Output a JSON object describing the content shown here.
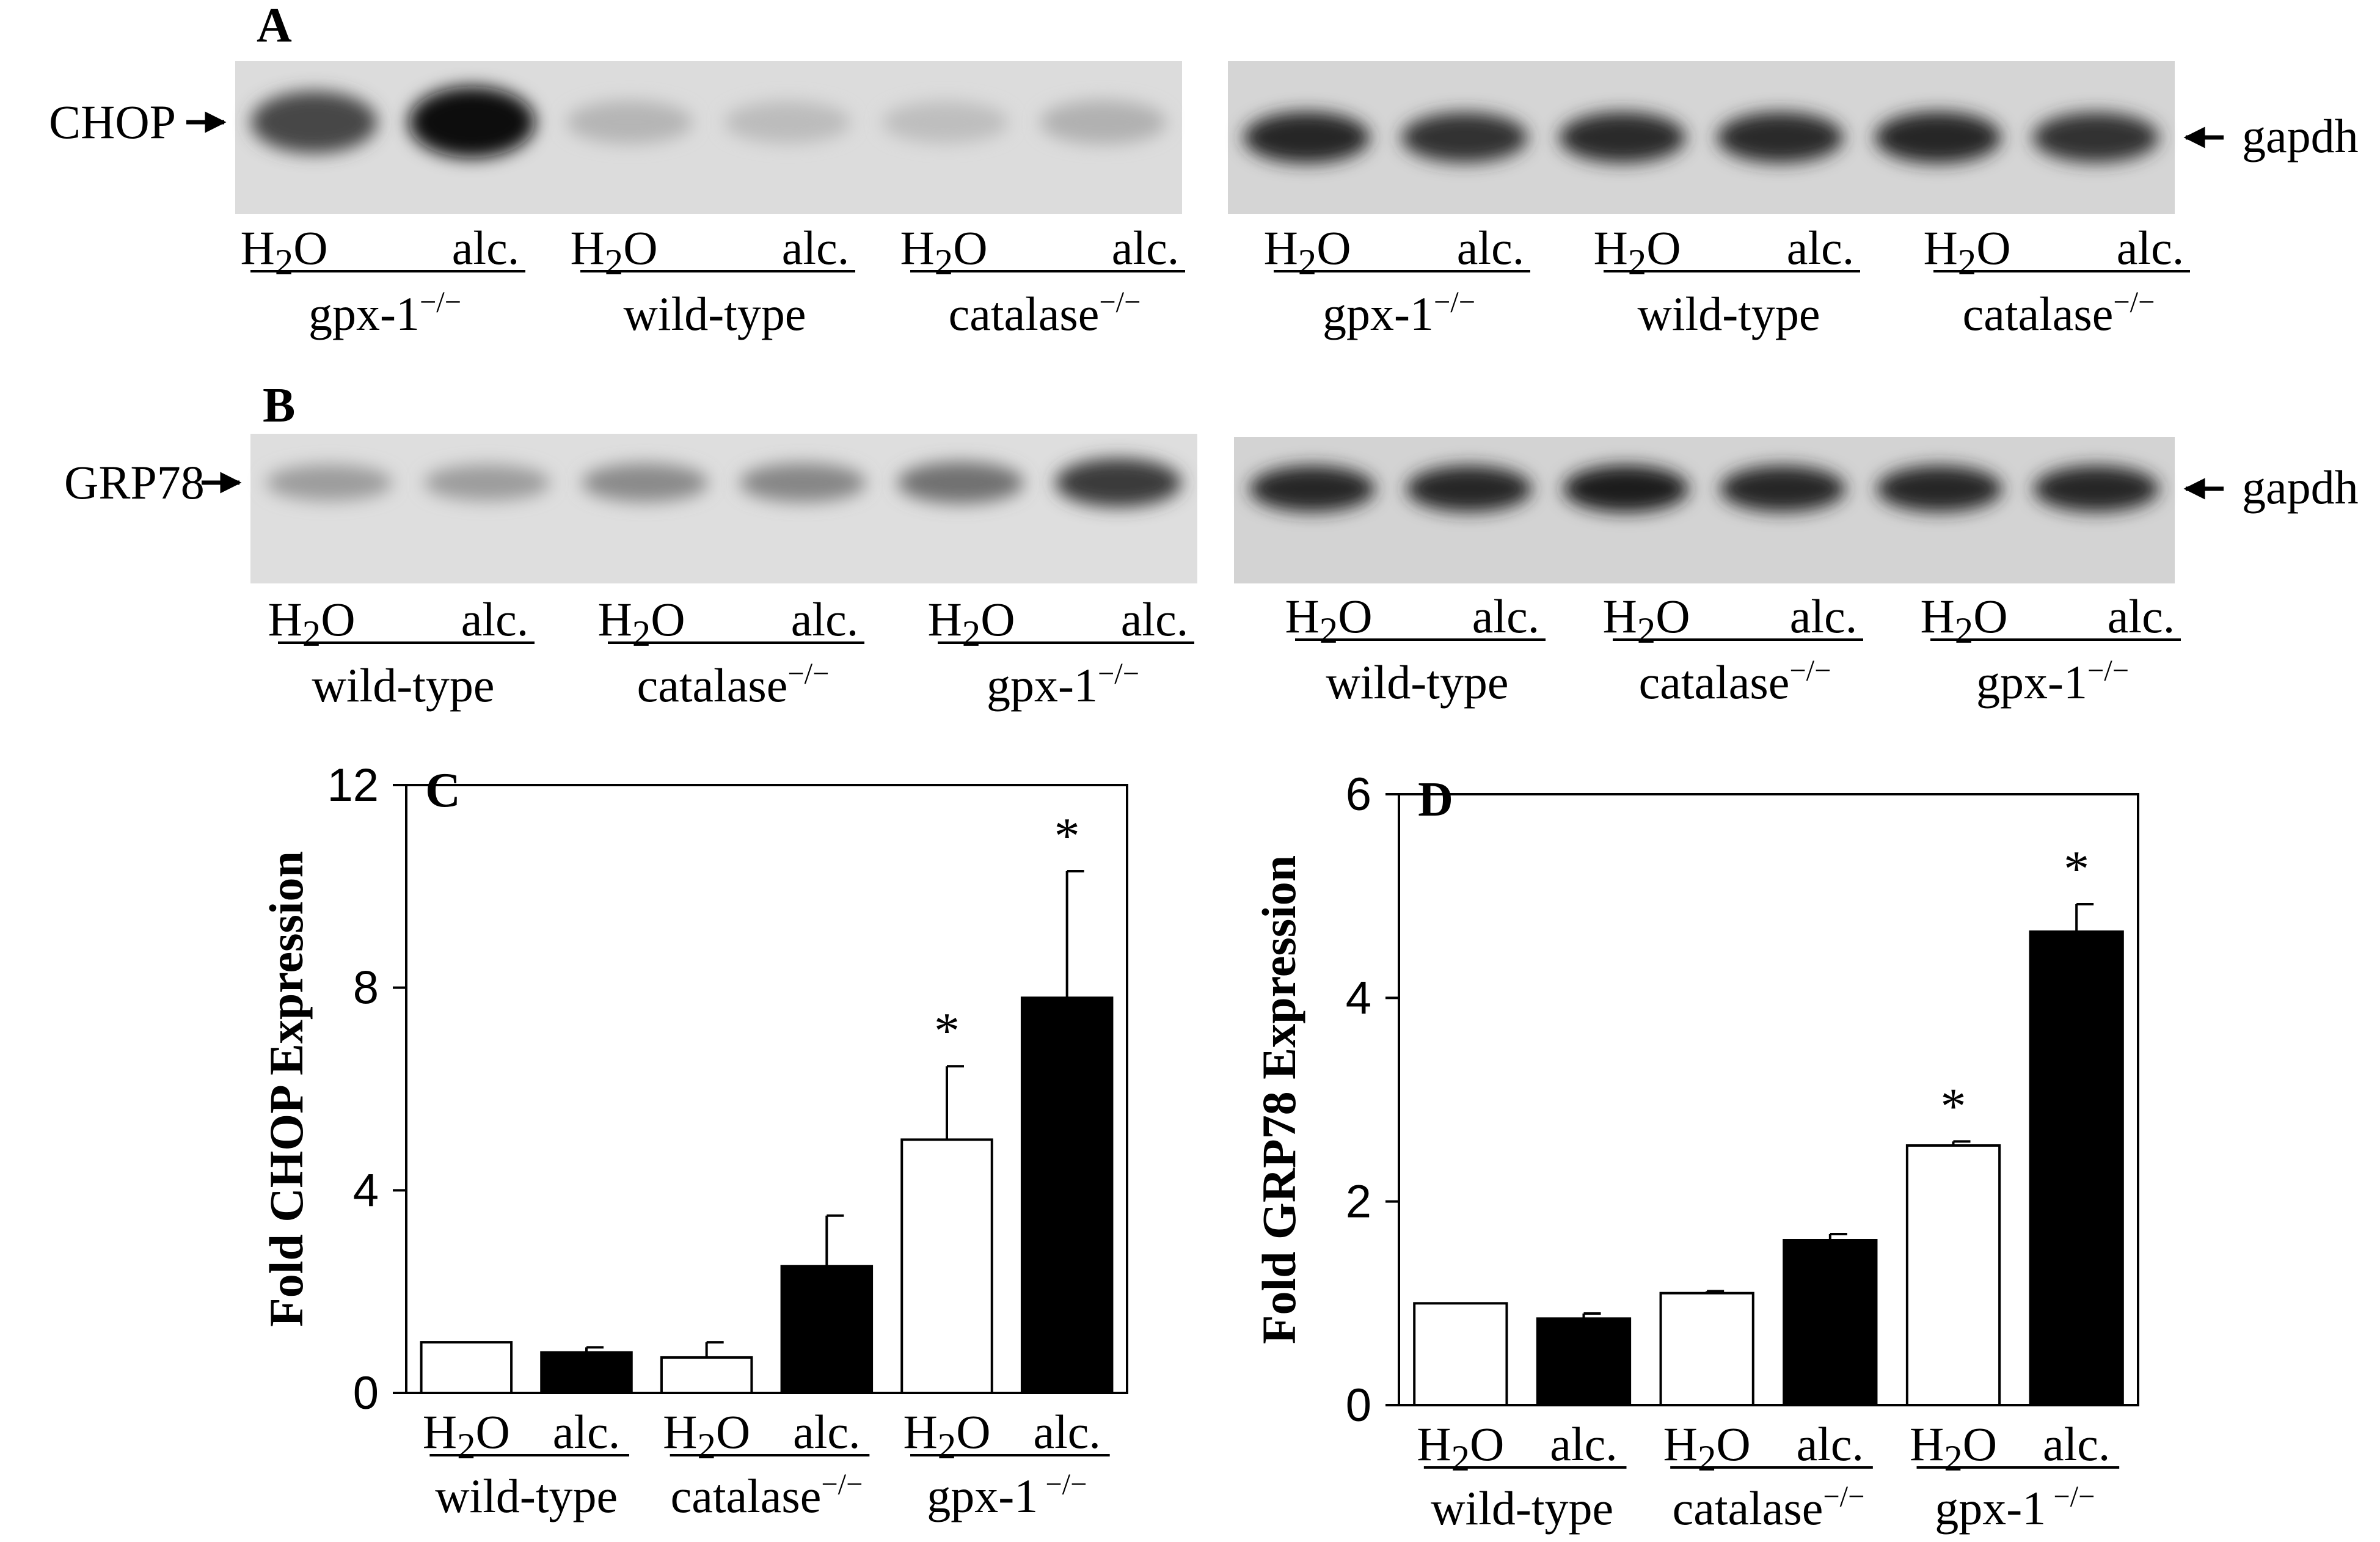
{
  "panels": {
    "A": {
      "letter": "A",
      "left": {
        "marker": "CHOP",
        "lanes": [
          "H2O",
          "alc.",
          "H2O",
          "alc.",
          "H2O",
          "alc."
        ],
        "groups": [
          {
            "name": "gpx-1",
            "sup": "−/−"
          },
          {
            "name": "wild-type",
            "sup": ""
          },
          {
            "name": "catalase",
            "sup": "−/−"
          }
        ],
        "band_intensity": [
          0.7,
          0.95,
          0.18,
          0.15,
          0.14,
          0.2
        ]
      },
      "right": {
        "marker": "gapdh",
        "lanes": [
          "H2O",
          "alc.",
          "H2O",
          "alc.",
          "H2O",
          "alc."
        ],
        "groups": [
          {
            "name": "gpx-1",
            "sup": "−/−"
          },
          {
            "name": "wild-type",
            "sup": ""
          },
          {
            "name": "catalase",
            "sup": "−/−"
          }
        ],
        "band_intensity": [
          0.85,
          0.8,
          0.82,
          0.82,
          0.85,
          0.8
        ]
      }
    },
    "B": {
      "letter": "B",
      "left": {
        "marker": "GRP78",
        "lanes": [
          "H2O",
          "alc.",
          "H2O",
          "alc.",
          "H2O",
          "alc."
        ],
        "groups": [
          {
            "name": "wild-type",
            "sup": ""
          },
          {
            "name": "catalase",
            "sup": "−/−"
          },
          {
            "name": "gpx-1",
            "sup": "−/−"
          }
        ],
        "band_intensity": [
          0.3,
          0.3,
          0.38,
          0.4,
          0.5,
          0.75
        ]
      },
      "right": {
        "marker": "gapdh",
        "lanes": [
          "H2O",
          "alc.",
          "H2O",
          "alc.",
          "H2O",
          "alc."
        ],
        "groups": [
          {
            "name": "wild-type",
            "sup": ""
          },
          {
            "name": "catalase",
            "sup": "−/−"
          },
          {
            "name": "gpx-1",
            "sup": "−/−"
          }
        ],
        "band_intensity": [
          0.85,
          0.85,
          0.88,
          0.85,
          0.85,
          0.85
        ]
      }
    }
  },
  "chart_data": [
    {
      "panel": "C",
      "type": "bar",
      "ylabel": "Fold CHOP Expression",
      "ylim": [
        0,
        12
      ],
      "yticks": [
        "0",
        "4",
        "8",
        "12"
      ],
      "categories": [
        "H2O",
        "alc.",
        "H2O",
        "alc.",
        "H2O",
        "alc."
      ],
      "groups": [
        {
          "name": "wild-type",
          "sup": ""
        },
        {
          "name": "catalase",
          "sup": "−/−"
        },
        {
          "name": "gpx-1",
          "sup": " −/−"
        }
      ],
      "values": [
        1.0,
        0.8,
        0.7,
        2.5,
        5.0,
        7.8
      ],
      "errors": [
        0.0,
        0.1,
        0.3,
        1.0,
        1.45,
        2.5
      ],
      "fills": [
        "#ffffff",
        "#000000",
        "#ffffff",
        "#000000",
        "#ffffff",
        "#000000"
      ],
      "significance": [
        "",
        "",
        "",
        "",
        "*",
        "*"
      ],
      "grid": false
    },
    {
      "panel": "D",
      "type": "bar",
      "ylabel": "Fold GRP78 Expression",
      "ylim": [
        0,
        6
      ],
      "yticks": [
        "0",
        "2",
        "4",
        "6"
      ],
      "categories": [
        "H2O",
        "alc.",
        "H2O",
        "alc.",
        "H2O",
        "alc."
      ],
      "groups": [
        {
          "name": "wild-type",
          "sup": ""
        },
        {
          "name": "catalase",
          "sup": "−/−"
        },
        {
          "name": "gpx-1",
          "sup": " −/−"
        }
      ],
      "values": [
        1.0,
        0.85,
        1.1,
        1.62,
        2.55,
        4.65
      ],
      "errors": [
        0.0,
        0.05,
        0.02,
        0.06,
        0.04,
        0.27
      ],
      "fills": [
        "#ffffff",
        "#000000",
        "#ffffff",
        "#000000",
        "#ffffff",
        "#000000"
      ],
      "significance": [
        "",
        "",
        "",
        "",
        "*",
        "*"
      ],
      "grid": false
    }
  ]
}
